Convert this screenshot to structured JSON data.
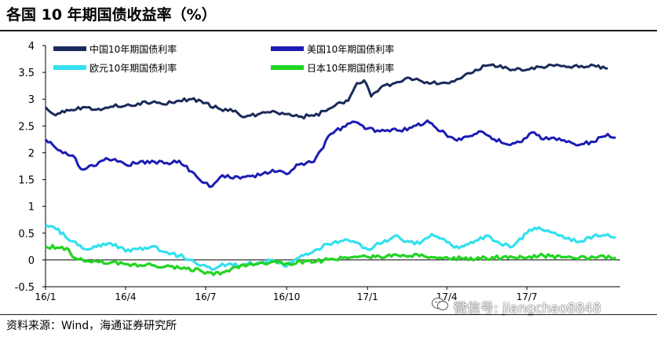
{
  "title": "各国 10 年期国债收益率（%）",
  "source": "资料来源：Wind，海通证券研究所",
  "watermark": {
    "text": "微信号: jiangchao8848",
    "icon": "wechat-icon"
  },
  "chart_data": {
    "type": "line",
    "ylim": [
      -0.5,
      4
    ],
    "yticks": [
      "4",
      "3.5",
      "3",
      "2.5",
      "2",
      "1.5",
      "1",
      "0.5",
      "0",
      "-0.5"
    ],
    "ytick_values": [
      4,
      3.5,
      3,
      2.5,
      2,
      1.5,
      1,
      0.5,
      0,
      -0.5
    ],
    "xlim": [
      "2016-01-01",
      "2017-10-15"
    ],
    "xticks": [
      "16/1",
      "16/4",
      "16/7",
      "16/10",
      "17/1",
      "17/4",
      "17/7"
    ],
    "xtick_dates": [
      "2016-01-01",
      "2016-04-01",
      "2016-07-01",
      "2016-10-01",
      "2017-01-01",
      "2017-04-01",
      "2017-07-01"
    ],
    "legend_position": "top",
    "grid": false,
    "series": [
      {
        "name": "中国10年期国债利率",
        "color": "#1a2a5a",
        "points": [
          [
            "2016-01-01",
            2.85
          ],
          [
            "2016-01-10",
            2.72
          ],
          [
            "2016-01-25",
            2.8
          ],
          [
            "2016-02-15",
            2.85
          ],
          [
            "2016-03-01",
            2.82
          ],
          [
            "2016-03-15",
            2.86
          ],
          [
            "2016-04-01",
            2.88
          ],
          [
            "2016-04-15",
            2.92
          ],
          [
            "2016-05-01",
            2.94
          ],
          [
            "2016-05-15",
            2.9
          ],
          [
            "2016-06-01",
            2.97
          ],
          [
            "2016-06-15",
            3.0
          ],
          [
            "2016-07-01",
            2.93
          ],
          [
            "2016-07-15",
            2.83
          ],
          [
            "2016-08-01",
            2.77
          ],
          [
            "2016-08-15",
            2.67
          ],
          [
            "2016-09-01",
            2.73
          ],
          [
            "2016-09-15",
            2.78
          ],
          [
            "2016-10-01",
            2.72
          ],
          [
            "2016-10-15",
            2.67
          ],
          [
            "2016-11-01",
            2.69
          ],
          [
            "2016-11-15",
            2.78
          ],
          [
            "2016-11-25",
            2.88
          ],
          [
            "2016-12-10",
            2.97
          ],
          [
            "2016-12-20",
            3.3
          ],
          [
            "2016-12-28",
            3.35
          ],
          [
            "2017-01-05",
            3.05
          ],
          [
            "2017-01-15",
            3.2
          ],
          [
            "2017-02-01",
            3.3
          ],
          [
            "2017-02-15",
            3.4
          ],
          [
            "2017-03-01",
            3.35
          ],
          [
            "2017-03-15",
            3.3
          ],
          [
            "2017-04-01",
            3.3
          ],
          [
            "2017-04-15",
            3.38
          ],
          [
            "2017-05-01",
            3.5
          ],
          [
            "2017-05-15",
            3.62
          ],
          [
            "2017-06-01",
            3.63
          ],
          [
            "2017-06-15",
            3.55
          ],
          [
            "2017-07-01",
            3.55
          ],
          [
            "2017-07-15",
            3.6
          ],
          [
            "2017-08-01",
            3.62
          ],
          [
            "2017-08-15",
            3.6
          ],
          [
            "2017-09-01",
            3.62
          ],
          [
            "2017-09-15",
            3.63
          ],
          [
            "2017-10-01",
            3.57
          ]
        ]
      },
      {
        "name": "美国10年期国债利率",
        "color": "#1c1cb4",
        "points": [
          [
            "2016-01-01",
            2.25
          ],
          [
            "2016-01-15",
            2.05
          ],
          [
            "2016-02-01",
            1.95
          ],
          [
            "2016-02-10",
            1.7
          ],
          [
            "2016-02-25",
            1.75
          ],
          [
            "2016-03-10",
            1.9
          ],
          [
            "2016-03-20",
            1.88
          ],
          [
            "2016-04-01",
            1.78
          ],
          [
            "2016-04-15",
            1.8
          ],
          [
            "2016-05-01",
            1.85
          ],
          [
            "2016-05-15",
            1.8
          ],
          [
            "2016-06-01",
            1.85
          ],
          [
            "2016-06-15",
            1.65
          ],
          [
            "2016-06-27",
            1.45
          ],
          [
            "2016-07-08",
            1.37
          ],
          [
            "2016-07-20",
            1.58
          ],
          [
            "2016-08-01",
            1.52
          ],
          [
            "2016-08-15",
            1.55
          ],
          [
            "2016-09-01",
            1.58
          ],
          [
            "2016-09-15",
            1.68
          ],
          [
            "2016-10-01",
            1.6
          ],
          [
            "2016-10-15",
            1.78
          ],
          [
            "2016-11-01",
            1.83
          ],
          [
            "2016-11-09",
            2.05
          ],
          [
            "2016-11-20",
            2.35
          ],
          [
            "2016-12-15",
            2.58
          ],
          [
            "2017-01-01",
            2.45
          ],
          [
            "2017-01-15",
            2.4
          ],
          [
            "2017-02-01",
            2.45
          ],
          [
            "2017-02-15",
            2.42
          ],
          [
            "2017-03-10",
            2.6
          ],
          [
            "2017-03-25",
            2.4
          ],
          [
            "2017-04-10",
            2.25
          ],
          [
            "2017-04-25",
            2.3
          ],
          [
            "2017-05-10",
            2.4
          ],
          [
            "2017-05-25",
            2.25
          ],
          [
            "2017-06-10",
            2.15
          ],
          [
            "2017-06-25",
            2.2
          ],
          [
            "2017-07-07",
            2.38
          ],
          [
            "2017-07-20",
            2.25
          ],
          [
            "2017-08-01",
            2.28
          ],
          [
            "2017-08-15",
            2.2
          ],
          [
            "2017-09-01",
            2.16
          ],
          [
            "2017-09-15",
            2.2
          ],
          [
            "2017-10-01",
            2.35
          ],
          [
            "2017-10-10",
            2.28
          ]
        ]
      },
      {
        "name": "欧元10年期国债利率",
        "color": "#33e0ee",
        "points": [
          [
            "2016-01-01",
            0.65
          ],
          [
            "2016-01-10",
            0.62
          ],
          [
            "2016-02-01",
            0.35
          ],
          [
            "2016-02-15",
            0.2
          ],
          [
            "2016-03-01",
            0.28
          ],
          [
            "2016-03-15",
            0.31
          ],
          [
            "2016-04-01",
            0.16
          ],
          [
            "2016-04-15",
            0.2
          ],
          [
            "2016-05-01",
            0.25
          ],
          [
            "2016-05-15",
            0.15
          ],
          [
            "2016-06-01",
            0.08
          ],
          [
            "2016-06-15",
            0.0
          ],
          [
            "2016-06-27",
            -0.1
          ],
          [
            "2016-07-08",
            -0.18
          ],
          [
            "2016-07-20",
            -0.07
          ],
          [
            "2016-08-01",
            -0.1
          ],
          [
            "2016-08-15",
            -0.08
          ],
          [
            "2016-09-01",
            -0.06
          ],
          [
            "2016-09-15",
            0.0
          ],
          [
            "2016-10-01",
            -0.12
          ],
          [
            "2016-10-10",
            0.0
          ],
          [
            "2016-10-25",
            0.1
          ],
          [
            "2016-11-15",
            0.3
          ],
          [
            "2016-12-01",
            0.35
          ],
          [
            "2016-12-15",
            0.35
          ],
          [
            "2017-01-01",
            0.2
          ],
          [
            "2017-01-15",
            0.3
          ],
          [
            "2017-02-01",
            0.45
          ],
          [
            "2017-02-15",
            0.35
          ],
          [
            "2017-03-01",
            0.3
          ],
          [
            "2017-03-15",
            0.48
          ],
          [
            "2017-04-01",
            0.33
          ],
          [
            "2017-04-15",
            0.22
          ],
          [
            "2017-05-01",
            0.32
          ],
          [
            "2017-05-15",
            0.45
          ],
          [
            "2017-06-01",
            0.3
          ],
          [
            "2017-06-15",
            0.25
          ],
          [
            "2017-07-01",
            0.5
          ],
          [
            "2017-07-10",
            0.6
          ],
          [
            "2017-07-25",
            0.55
          ],
          [
            "2017-08-15",
            0.4
          ],
          [
            "2017-09-01",
            0.35
          ],
          [
            "2017-09-15",
            0.45
          ],
          [
            "2017-10-01",
            0.48
          ],
          [
            "2017-10-10",
            0.42
          ]
        ]
      },
      {
        "name": "日本10年期国债利率",
        "color": "#22d422",
        "points": [
          [
            "2016-01-01",
            0.25
          ],
          [
            "2016-01-25",
            0.22
          ],
          [
            "2016-02-01",
            0.05
          ],
          [
            "2016-02-10",
            0.03
          ],
          [
            "2016-02-20",
            -0.03
          ],
          [
            "2016-03-15",
            -0.05
          ],
          [
            "2016-04-01",
            -0.08
          ],
          [
            "2016-05-01",
            -0.1
          ],
          [
            "2016-06-01",
            -0.15
          ],
          [
            "2016-06-25",
            -0.2
          ],
          [
            "2016-07-10",
            -0.28
          ],
          [
            "2016-07-25",
            -0.2
          ],
          [
            "2016-08-10",
            -0.1
          ],
          [
            "2016-09-01",
            -0.05
          ],
          [
            "2016-09-20",
            -0.05
          ],
          [
            "2016-10-01",
            -0.06
          ],
          [
            "2016-11-01",
            -0.04
          ],
          [
            "2016-11-20",
            0.02
          ],
          [
            "2016-12-15",
            0.05
          ],
          [
            "2017-01-15",
            0.06
          ],
          [
            "2017-02-10",
            0.09
          ],
          [
            "2017-03-01",
            0.07
          ],
          [
            "2017-04-01",
            0.05
          ],
          [
            "2017-04-20",
            0.02
          ],
          [
            "2017-05-15",
            0.04
          ],
          [
            "2017-06-15",
            0.05
          ],
          [
            "2017-07-20",
            0.08
          ],
          [
            "2017-08-15",
            0.05
          ],
          [
            "2017-09-15",
            0.05
          ],
          [
            "2017-10-10",
            0.05
          ]
        ]
      }
    ]
  }
}
